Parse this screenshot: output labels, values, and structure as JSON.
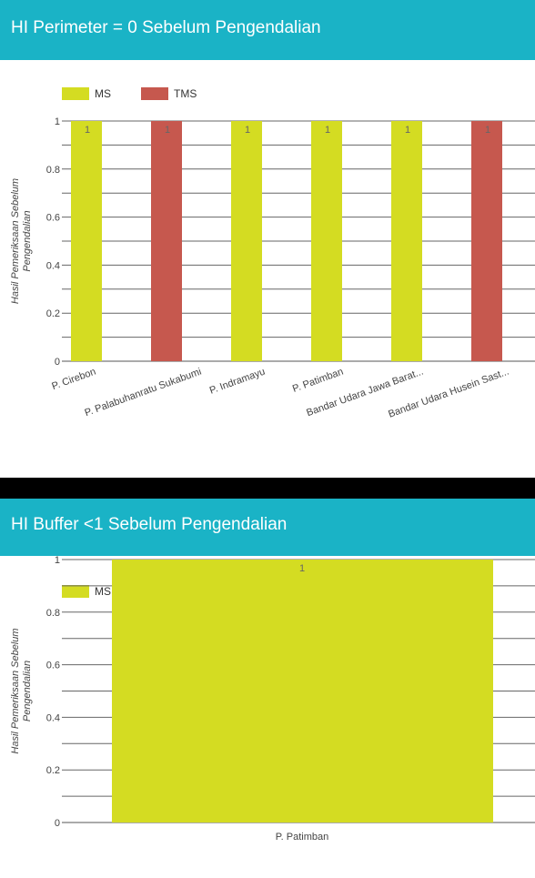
{
  "charts": [
    {
      "header": "HI Perimeter = 0 Sebelum Pengendalian",
      "colors": {
        "MS": "#d4dc22",
        "TMS": "#c6584e"
      },
      "chart_data": {
        "type": "bar",
        "categories": [
          "P. Cirebon",
          "P. Palabuhanratu Sukabumi",
          "P. Indramayu",
          "P. Patimban",
          "Bandar Udara Jawa Barat...",
          "Bandar Udara Husein Sast..."
        ],
        "series": [
          {
            "name": "MS",
            "values": [
              1,
              0,
              1,
              1,
              1,
              0
            ]
          },
          {
            "name": "TMS",
            "values": [
              0,
              1,
              0,
              0,
              0,
              1
            ]
          }
        ],
        "data_labels": [
          [
            "1",
            "",
            "1",
            "1",
            "1",
            ""
          ],
          [
            "",
            "1",
            "",
            "",
            "",
            "1"
          ]
        ],
        "ylabel": "Hasil Pemeriksaan Sebelum Pengendalian",
        "ylim": [
          0,
          1
        ],
        "yticks": [
          "0",
          "0.2",
          "0.4",
          "0.6",
          "0.8",
          "1"
        ],
        "grid": true,
        "legend": "top-left"
      }
    },
    {
      "header": "HI Buffer <1 Sebelum Pengendalian",
      "colors": {
        "MS": "#d4dc22"
      },
      "chart_data": {
        "type": "bar",
        "categories": [
          "P. Patimban"
        ],
        "series": [
          {
            "name": "MS",
            "values": [
              1
            ]
          }
        ],
        "data_labels": [
          [
            "1"
          ]
        ],
        "ylabel": "Hasil Pemeriksaan Sebelum Pengendalian",
        "ylim": [
          0,
          1
        ],
        "yticks": [
          "0",
          "0.2",
          "0.4",
          "0.6",
          "0.8",
          "1"
        ],
        "grid": true,
        "legend": "top-left"
      }
    }
  ]
}
